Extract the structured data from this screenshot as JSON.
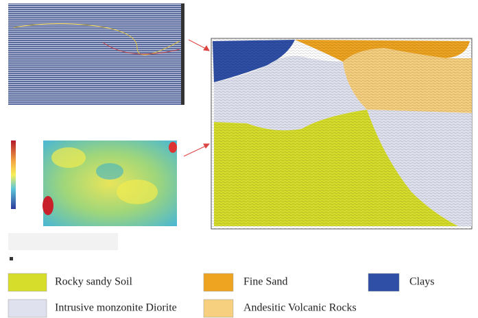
{
  "legend": {
    "items": [
      {
        "label": "Rocky sandy Soil",
        "color": "#d6dd2b"
      },
      {
        "label": "Fine Sand",
        "color": "#eea421"
      },
      {
        "label": "Clays",
        "color": "#2f4ea6"
      },
      {
        "label": "Intrusive monzonite Diorite",
        "color": "#dfe1ee"
      },
      {
        "label": "Andesitic Volcanic Rocks",
        "color": "#f6cf7f"
      }
    ]
  }
}
